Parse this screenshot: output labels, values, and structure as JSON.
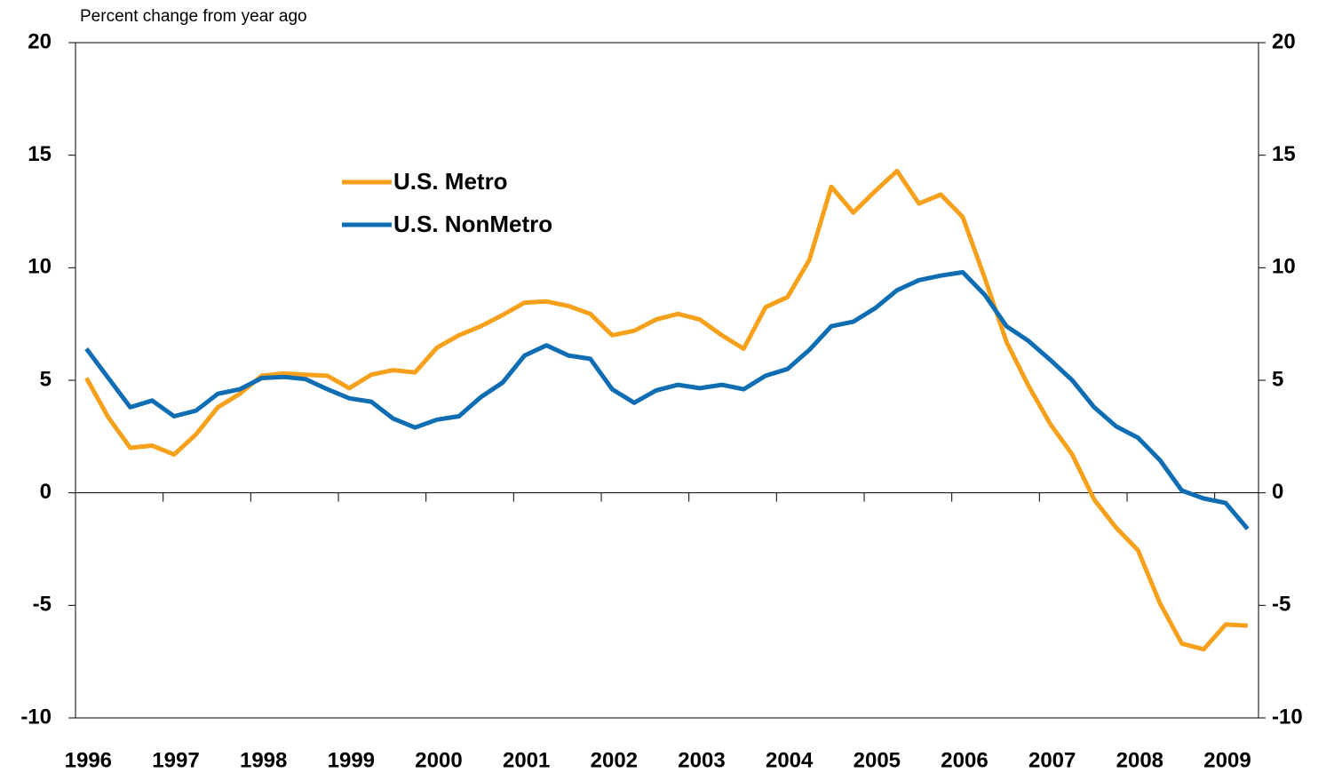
{
  "chart_data": {
    "type": "line",
    "ylabel": "Percent change from year ago",
    "categories": [
      "1996",
      null,
      null,
      null,
      "1997",
      null,
      null,
      null,
      "1998",
      null,
      null,
      null,
      "1999",
      null,
      null,
      null,
      "2000",
      null,
      null,
      null,
      "2001",
      null,
      null,
      null,
      "2002",
      null,
      null,
      null,
      "2003",
      null,
      null,
      null,
      "2004",
      null,
      null,
      null,
      "2005",
      null,
      null,
      null,
      "2006",
      null,
      null,
      null,
      "2007",
      null,
      null,
      null,
      "2008",
      null,
      null,
      null,
      "2009",
      null
    ],
    "series": [
      {
        "name": "U.S. Metro",
        "color": "#f7a01b",
        "values": [
          5.1,
          3.35,
          2.0,
          2.1,
          1.7,
          2.6,
          3.8,
          4.4,
          5.2,
          5.3,
          5.25,
          5.2,
          4.65,
          5.25,
          5.45,
          5.35,
          6.45,
          7.0,
          7.4,
          7.9,
          8.45,
          8.5,
          8.3,
          7.95,
          7.0,
          7.2,
          7.7,
          7.95,
          7.7,
          7.0,
          6.4,
          8.25,
          8.7,
          10.35,
          13.6,
          12.45,
          13.4,
          14.3,
          12.85,
          13.25,
          12.25,
          9.55,
          6.7,
          4.75,
          3.05,
          1.7,
          -0.3,
          -1.55,
          -2.55,
          -4.9,
          -6.7,
          -6.95,
          -5.85,
          -5.9
        ]
      },
      {
        "name": "U.S. NonMetro",
        "color": "#0f6db3",
        "values": [
          6.4,
          5.1,
          3.8,
          4.1,
          3.4,
          3.65,
          4.4,
          4.6,
          5.1,
          5.15,
          5.05,
          4.6,
          4.2,
          4.05,
          3.3,
          2.9,
          3.25,
          3.4,
          4.25,
          4.9,
          6.1,
          6.55,
          6.1,
          5.95,
          4.6,
          4.0,
          4.55,
          4.8,
          4.65,
          4.8,
          4.6,
          5.2,
          5.5,
          6.35,
          7.4,
          7.6,
          8.2,
          9.0,
          9.45,
          9.65,
          9.8,
          8.8,
          7.4,
          6.75,
          5.9,
          5.0,
          3.8,
          2.95,
          2.45,
          1.45,
          0.1,
          -0.25,
          -0.45,
          -1.6
        ]
      }
    ],
    "ylim": [
      -10,
      20
    ],
    "yticks": [
      -10,
      -5,
      0,
      5,
      10,
      15,
      20
    ],
    "y2lim": [
      -10,
      20
    ],
    "y2ticks": [
      -10,
      -5,
      0,
      5,
      10,
      15,
      20
    ]
  }
}
